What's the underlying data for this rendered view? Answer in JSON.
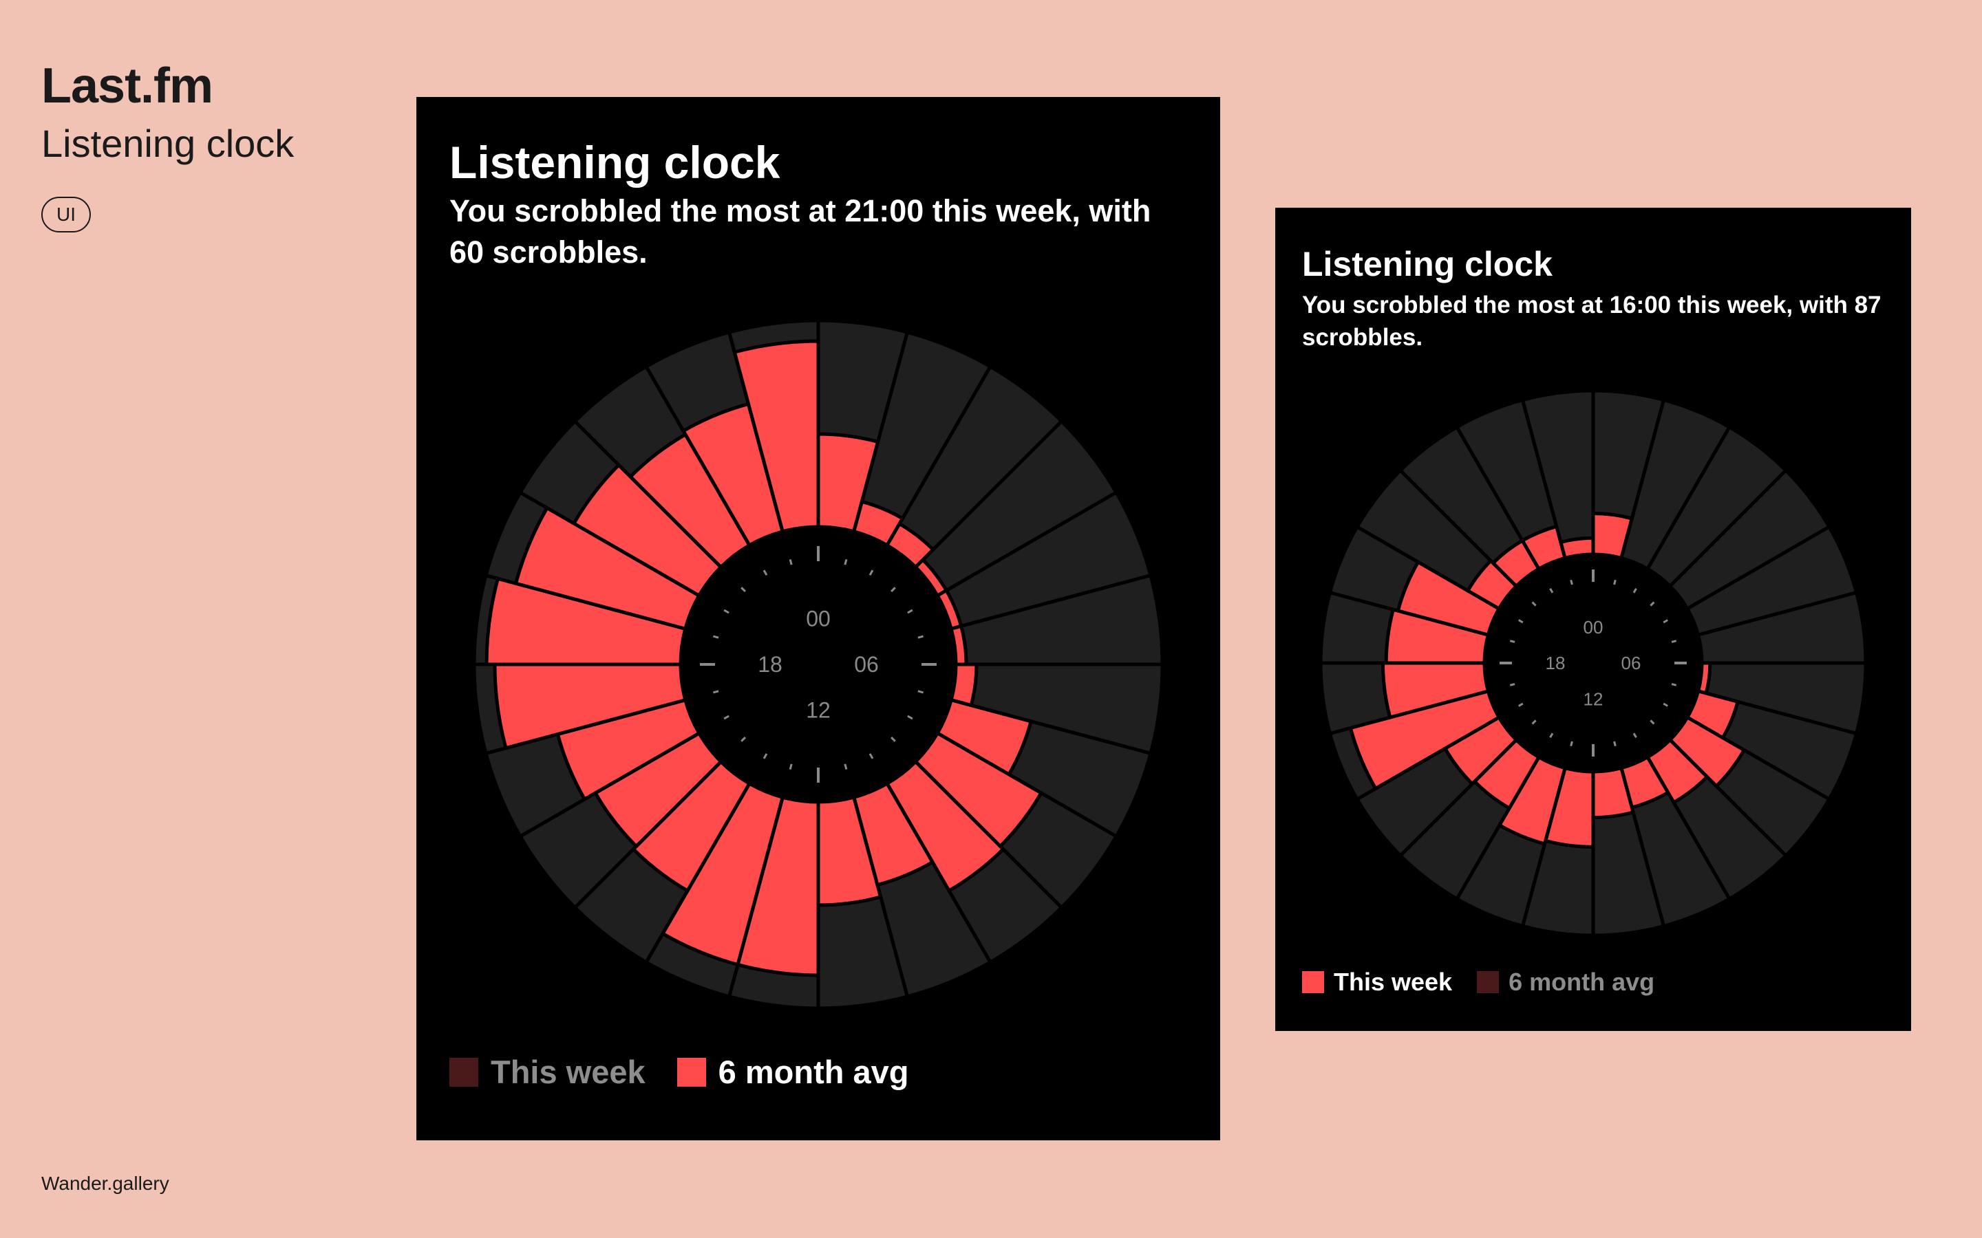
{
  "page": {
    "brand": "Last.fm",
    "subtitle": "Listening clock",
    "tag": "UI",
    "footer": "Wander.gallery"
  },
  "colors": {
    "background": "#f1c3b5",
    "card": "#000000",
    "ring": "#1f1f1f",
    "accent": "#ff4b4b",
    "accent_dim": "#4a1a1a",
    "tick": "#8a8a8a"
  },
  "cards": [
    {
      "title": "Listening clock",
      "description": "You scrobbled the most at 21:00 this week, with 60 scrobbles.",
      "hour_labels": [
        "00",
        "06",
        "12",
        "18"
      ],
      "legend": [
        {
          "label": "This week",
          "color": "#4a1a1a",
          "text_color": "#8d8d8d"
        },
        {
          "label": "6 month avg",
          "color": "#ff4b4b",
          "text_color": "#ffffff"
        }
      ]
    },
    {
      "title": "Listening clock",
      "description": "You scrobbled the most at 16:00 this week, with 87 scrobbles.",
      "hour_labels": [
        "00",
        "06",
        "12",
        "18"
      ],
      "legend": [
        {
          "label": "This week",
          "color": "#ff4b4b",
          "text_color": "#ffffff"
        },
        {
          "label": "6 month avg",
          "color": "#4a1a1a",
          "text_color": "#8d8d8d"
        }
      ]
    }
  ],
  "chart_data": [
    {
      "type": "radial-bar",
      "categories": [
        "00",
        "01",
        "02",
        "03",
        "04",
        "05",
        "06",
        "07",
        "08",
        "09",
        "10",
        "11",
        "12",
        "13",
        "14",
        "15",
        "16",
        "17",
        "18",
        "19",
        "20",
        "21",
        "22",
        "23"
      ],
      "series": [
        {
          "name": "6 month avg",
          "values": [
            0.45,
            0.15,
            0.12,
            0.05,
            0.05,
            0.05,
            0.1,
            0.4,
            0.58,
            0.6,
            0.44,
            0.5,
            0.84,
            0.84,
            0.6,
            0.58,
            0.64,
            0.9,
            0.94,
            0.85,
            0.7,
            0.62,
            0.64,
            0.9
          ]
        }
      ]
    },
    {
      "type": "radial-bar",
      "categories": [
        "00",
        "01",
        "02",
        "03",
        "04",
        "05",
        "06",
        "07",
        "08",
        "09",
        "10",
        "11",
        "12",
        "13",
        "14",
        "15",
        "16",
        "17",
        "18",
        "19",
        "20",
        "21",
        "22",
        "23"
      ],
      "series": [
        {
          "name": "This week",
          "values": [
            0.25,
            0.0,
            0.0,
            0.0,
            0.0,
            0.0,
            0.05,
            0.25,
            0.4,
            0.32,
            0.25,
            0.28,
            0.46,
            0.48,
            0.36,
            0.38,
            0.87,
            0.62,
            0.6,
            0.57,
            0.22,
            0.2,
            0.2,
            0.1
          ]
        }
      ]
    }
  ]
}
